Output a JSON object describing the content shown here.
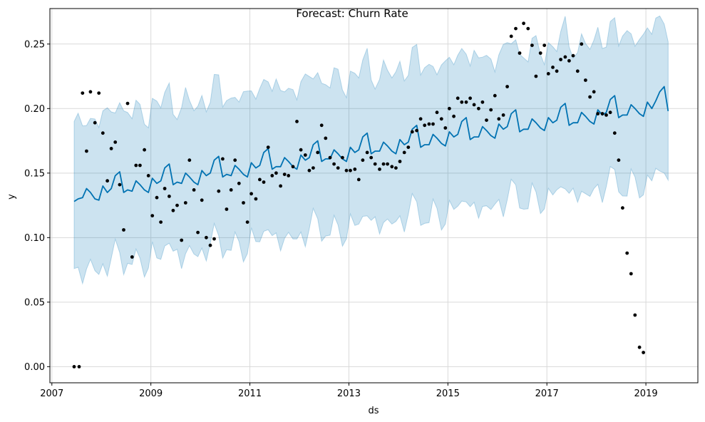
{
  "chart_data": {
    "type": "line",
    "title": "Forecast: Churn Rate",
    "xlabel": "ds",
    "ylabel": "y",
    "x_ticks": [
      "2007",
      "2009",
      "2011",
      "2013",
      "2015",
      "2017",
      "2019"
    ],
    "y_ticks": [
      "0.00",
      "0.05",
      "0.10",
      "0.15",
      "0.20",
      "0.25"
    ],
    "xlim": [
      2006.96,
      2020.05
    ],
    "ylim": [
      -0.0125,
      0.2775
    ],
    "grid": true,
    "colors": {
      "forecast_line": "#0072B2",
      "uncertainty_band": "#0072B2",
      "observed_points": "#000000",
      "grid": "#d9d9d9"
    },
    "series": [
      {
        "kind": "observed",
        "points": [
          [
            2007.45,
            0.0
          ],
          [
            2007.55,
            0.0
          ],
          [
            2007.62,
            0.212
          ],
          [
            2007.7,
            0.167
          ],
          [
            2007.78,
            0.213
          ],
          [
            2007.87,
            0.189
          ],
          [
            2007.95,
            0.212
          ],
          [
            2008.03,
            0.181
          ],
          [
            2008.12,
            0.144
          ],
          [
            2008.2,
            0.169
          ],
          [
            2008.28,
            0.174
          ],
          [
            2008.37,
            0.141
          ],
          [
            2008.45,
            0.106
          ],
          [
            2008.53,
            0.204
          ],
          [
            2008.62,
            0.085
          ],
          [
            2008.7,
            0.156
          ],
          [
            2008.78,
            0.156
          ],
          [
            2008.87,
            0.168
          ],
          [
            2008.95,
            0.148
          ],
          [
            2009.03,
            0.117
          ],
          [
            2009.12,
            0.131
          ],
          [
            2009.2,
            0.112
          ],
          [
            2009.28,
            0.138
          ],
          [
            2009.37,
            0.132
          ],
          [
            2009.45,
            0.121
          ],
          [
            2009.53,
            0.125
          ],
          [
            2009.62,
            0.098
          ],
          [
            2009.7,
            0.127
          ],
          [
            2009.78,
            0.16
          ],
          [
            2009.87,
            0.137
          ],
          [
            2009.95,
            0.104
          ],
          [
            2010.03,
            0.129
          ],
          [
            2010.12,
            0.1
          ],
          [
            2010.2,
            0.094
          ],
          [
            2010.28,
            0.099
          ],
          [
            2010.37,
            0.136
          ],
          [
            2010.45,
            0.161
          ],
          [
            2010.53,
            0.122
          ],
          [
            2010.62,
            0.137
          ],
          [
            2010.7,
            0.16
          ],
          [
            2010.78,
            0.142
          ],
          [
            2010.87,
            0.127
          ],
          [
            2010.95,
            0.112
          ],
          [
            2011.03,
            0.134
          ],
          [
            2011.12,
            0.13
          ],
          [
            2011.2,
            0.145
          ],
          [
            2011.28,
            0.143
          ],
          [
            2011.37,
            0.17
          ],
          [
            2011.45,
            0.148
          ],
          [
            2011.53,
            0.15
          ],
          [
            2011.62,
            0.14
          ],
          [
            2011.7,
            0.149
          ],
          [
            2011.78,
            0.148
          ],
          [
            2011.87,
            0.155
          ],
          [
            2011.95,
            0.19
          ],
          [
            2012.03,
            0.168
          ],
          [
            2012.12,
            0.164
          ],
          [
            2012.2,
            0.152
          ],
          [
            2012.28,
            0.154
          ],
          [
            2012.37,
            0.166
          ],
          [
            2012.45,
            0.187
          ],
          [
            2012.53,
            0.177
          ],
          [
            2012.62,
            0.162
          ],
          [
            2012.7,
            0.157
          ],
          [
            2012.78,
            0.154
          ],
          [
            2012.87,
            0.162
          ],
          [
            2012.95,
            0.152
          ],
          [
            2013.03,
            0.152
          ],
          [
            2013.12,
            0.153
          ],
          [
            2013.2,
            0.145
          ],
          [
            2013.28,
            0.16
          ],
          [
            2013.37,
            0.166
          ],
          [
            2013.45,
            0.162
          ],
          [
            2013.53,
            0.157
          ],
          [
            2013.62,
            0.153
          ],
          [
            2013.7,
            0.157
          ],
          [
            2013.78,
            0.157
          ],
          [
            2013.87,
            0.155
          ],
          [
            2013.95,
            0.154
          ],
          [
            2014.03,
            0.159
          ],
          [
            2014.12,
            0.166
          ],
          [
            2014.2,
            0.17
          ],
          [
            2014.28,
            0.182
          ],
          [
            2014.37,
            0.183
          ],
          [
            2014.45,
            0.192
          ],
          [
            2014.53,
            0.187
          ],
          [
            2014.62,
            0.188
          ],
          [
            2014.7,
            0.188
          ],
          [
            2014.78,
            0.197
          ],
          [
            2014.87,
            0.192
          ],
          [
            2014.95,
            0.185
          ],
          [
            2015.03,
            0.2
          ],
          [
            2015.12,
            0.194
          ],
          [
            2015.2,
            0.208
          ],
          [
            2015.28,
            0.205
          ],
          [
            2015.37,
            0.205
          ],
          [
            2015.45,
            0.208
          ],
          [
            2015.53,
            0.203
          ],
          [
            2015.62,
            0.2
          ],
          [
            2015.7,
            0.205
          ],
          [
            2015.78,
            0.191
          ],
          [
            2015.87,
            0.199
          ],
          [
            2015.95,
            0.21
          ],
          [
            2016.03,
            0.192
          ],
          [
            2016.12,
            0.195
          ],
          [
            2016.2,
            0.217
          ],
          [
            2016.28,
            0.256
          ],
          [
            2016.37,
            0.262
          ],
          [
            2016.45,
            0.243
          ],
          [
            2016.53,
            0.266
          ],
          [
            2016.62,
            0.262
          ],
          [
            2016.7,
            0.249
          ],
          [
            2016.78,
            0.225
          ],
          [
            2016.87,
            0.243
          ],
          [
            2016.95,
            0.249
          ],
          [
            2017.03,
            0.227
          ],
          [
            2017.12,
            0.232
          ],
          [
            2017.2,
            0.229
          ],
          [
            2017.28,
            0.238
          ],
          [
            2017.37,
            0.24
          ],
          [
            2017.45,
            0.237
          ],
          [
            2017.53,
            0.241
          ],
          [
            2017.62,
            0.229
          ],
          [
            2017.7,
            0.25
          ],
          [
            2017.78,
            0.222
          ],
          [
            2017.87,
            0.209
          ],
          [
            2017.95,
            0.213
          ],
          [
            2018.03,
            0.196
          ],
          [
            2018.12,
            0.196
          ],
          [
            2018.2,
            0.195
          ],
          [
            2018.28,
            0.197
          ],
          [
            2018.37,
            0.181
          ],
          [
            2018.45,
            0.16
          ],
          [
            2018.53,
            0.123
          ],
          [
            2018.62,
            0.088
          ],
          [
            2018.7,
            0.072
          ],
          [
            2018.78,
            0.04
          ],
          [
            2018.87,
            0.015
          ],
          [
            2018.95,
            0.011
          ]
        ]
      },
      {
        "kind": "forecast",
        "x": [
          2007.45,
          2007.53,
          2007.62,
          2007.7,
          2007.78,
          2007.87,
          2007.95,
          2008.03,
          2008.12,
          2008.2,
          2008.28,
          2008.37,
          2008.45,
          2008.53,
          2008.62,
          2008.7,
          2008.78,
          2008.87,
          2008.95,
          2009.03,
          2009.12,
          2009.2,
          2009.28,
          2009.37,
          2009.45,
          2009.53,
          2009.62,
          2009.7,
          2009.78,
          2009.87,
          2009.95,
          2010.03,
          2010.12,
          2010.2,
          2010.28,
          2010.37,
          2010.45,
          2010.53,
          2010.62,
          2010.7,
          2010.78,
          2010.87,
          2010.95,
          2011.03,
          2011.12,
          2011.2,
          2011.28,
          2011.37,
          2011.45,
          2011.53,
          2011.62,
          2011.7,
          2011.78,
          2011.87,
          2011.95,
          2012.03,
          2012.12,
          2012.2,
          2012.28,
          2012.37,
          2012.45,
          2012.53,
          2012.62,
          2012.7,
          2012.78,
          2012.87,
          2012.95,
          2013.03,
          2013.12,
          2013.2,
          2013.28,
          2013.37,
          2013.45,
          2013.53,
          2013.62,
          2013.7,
          2013.78,
          2013.87,
          2013.95,
          2014.03,
          2014.12,
          2014.2,
          2014.28,
          2014.37,
          2014.45,
          2014.53,
          2014.62,
          2014.7,
          2014.78,
          2014.87,
          2014.95,
          2015.03,
          2015.12,
          2015.2,
          2015.28,
          2015.37,
          2015.45,
          2015.53,
          2015.62,
          2015.7,
          2015.78,
          2015.87,
          2015.95,
          2016.03,
          2016.12,
          2016.2,
          2016.28,
          2016.37,
          2016.45,
          2016.53,
          2016.62,
          2016.7,
          2016.78,
          2016.87,
          2016.95,
          2017.03,
          2017.12,
          2017.2,
          2017.28,
          2017.37,
          2017.45,
          2017.53,
          2017.62,
          2017.7,
          2017.78,
          2017.87,
          2017.95,
          2018.03,
          2018.12,
          2018.2,
          2018.28,
          2018.37,
          2018.45,
          2018.53,
          2018.62,
          2018.7,
          2018.78,
          2018.87,
          2018.95,
          2019.03,
          2019.12,
          2019.2,
          2019.28,
          2019.37,
          2019.45
        ],
        "yhat": [
          0.128,
          0.13,
          0.131,
          0.138,
          0.135,
          0.13,
          0.129,
          0.14,
          0.135,
          0.138,
          0.148,
          0.151,
          0.135,
          0.137,
          0.136,
          0.144,
          0.141,
          0.137,
          0.135,
          0.146,
          0.142,
          0.144,
          0.154,
          0.157,
          0.141,
          0.143,
          0.142,
          0.15,
          0.147,
          0.143,
          0.141,
          0.152,
          0.148,
          0.15,
          0.16,
          0.163,
          0.147,
          0.149,
          0.148,
          0.156,
          0.153,
          0.149,
          0.147,
          0.158,
          0.154,
          0.156,
          0.166,
          0.169,
          0.153,
          0.155,
          0.155,
          0.162,
          0.159,
          0.155,
          0.153,
          0.164,
          0.16,
          0.162,
          0.172,
          0.175,
          0.159,
          0.161,
          0.161,
          0.168,
          0.165,
          0.161,
          0.159,
          0.17,
          0.166,
          0.168,
          0.178,
          0.181,
          0.165,
          0.167,
          0.167,
          0.174,
          0.171,
          0.167,
          0.165,
          0.176,
          0.172,
          0.174,
          0.184,
          0.187,
          0.17,
          0.172,
          0.172,
          0.18,
          0.177,
          0.173,
          0.171,
          0.182,
          0.178,
          0.18,
          0.19,
          0.193,
          0.176,
          0.178,
          0.178,
          0.186,
          0.183,
          0.179,
          0.177,
          0.188,
          0.184,
          0.186,
          0.196,
          0.199,
          0.182,
          0.184,
          0.184,
          0.192,
          0.189,
          0.185,
          0.183,
          0.193,
          0.189,
          0.191,
          0.201,
          0.204,
          0.187,
          0.189,
          0.189,
          0.197,
          0.194,
          0.19,
          0.188,
          0.199,
          0.195,
          0.197,
          0.207,
          0.21,
          0.193,
          0.195,
          0.195,
          0.203,
          0.2,
          0.196,
          0.194,
          0.205,
          0.2,
          0.206,
          0.213,
          0.217,
          0.198
        ],
        "band_halfwidth": 0.058
      }
    ]
  }
}
